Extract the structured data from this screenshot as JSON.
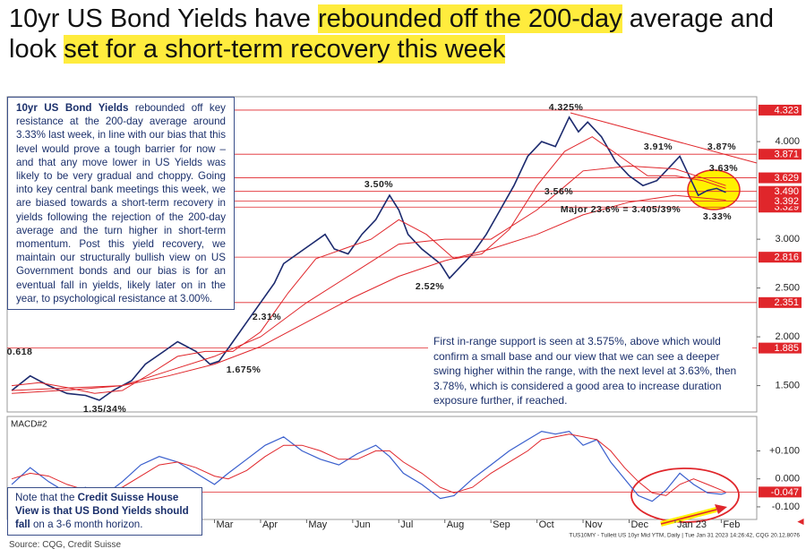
{
  "title": [
    {
      "text": "10yr US Bond Yields have ",
      "highlight": false
    },
    {
      "text": "rebounded off the 200-day",
      "highlight": true
    },
    {
      "text": " average and look ",
      "highlight": false
    },
    {
      "text": "set for a short-term recovery this week",
      "highlight": true
    }
  ],
  "commentary": [
    {
      "text": "10yr US Bond Yields",
      "bold": true
    },
    {
      "text": " rebounded off key resistance at the 200-day average around 3.33% last week, in line with our bias that this level would prove a tough barrier for now – and that any move lower in US Yields was likely to be very gradual and choppy. Going into key central bank meetings this week, we are biased towards a short-term recovery in yields following the rejection of the 200-day average and the turn higher in short-term momentum. Post this yield recovery, we maintain our structurally bullish view on US Government bonds and our bias is for an eventual fall in yields, likely later on in the year, to psychological resistance at 3.00%.",
      "bold": false
    }
  ],
  "outlook": "First in-range support is seen at 3.575%, above which would confirm a small base and our view that we can see a deeper swing higher within the range, with the next level at 3.63%, then 3.78%, which is considered a good area to increase duration exposure further, if reached.",
  "note": [
    {
      "text": "Note that the ",
      "bold": false
    },
    {
      "text": "Credit Suisse House View is that US Bond Yields should fall",
      "bold": true
    },
    {
      "text": " on a 3-6 month horizon.",
      "bold": false
    }
  ],
  "source": "Source: CQG, Credit Suisse",
  "footer": "TUS10MY - Tullett US 10yr Mid YTM, Daily | Tue Jan 31 2023 14:26:42, CQG 20.12.8076",
  "chart_data": [
    {
      "type": "line",
      "xlim": [
        -2.5,
        13.77
      ],
      "ylim": [
        1.23,
        4.46
      ],
      "yticks": [
        {
          "value": 1.5,
          "label": "1.500"
        },
        {
          "value": 2,
          "label": "2.000"
        },
        {
          "value": 2.5,
          "label": "2.500"
        },
        {
          "value": 3,
          "label": "3.000"
        },
        {
          "value": 4,
          "label": "4.000"
        }
      ],
      "levels": [
        {
          "value": 4.323,
          "label": "4.323"
        },
        {
          "value": 3.871,
          "label": "3.871"
        },
        {
          "value": 3.329,
          "label": "3.329"
        },
        {
          "value": 3.392,
          "label": "3.392"
        },
        {
          "value": 3.49,
          "label": "3.490"
        },
        {
          "value": 3.629,
          "label": "3.629"
        },
        {
          "value": 2.816,
          "label": "2.816"
        },
        {
          "value": 2.351,
          "label": "2.351"
        },
        {
          "value": 1.885,
          "label": "1.885"
        }
      ],
      "level_color": "#e0262b",
      "annotations": [
        "4.325%",
        "3.91%",
        "3.87%",
        "3.63%",
        "3.56%",
        "3.50%",
        "2.52%",
        "2.31%",
        "1.675%",
        "1.35/34%",
        "Major 23.6% = 3.405/39%",
        "3.33%",
        "0.618"
      ],
      "series": [
        {
          "color": "#1c2a6e",
          "width": 1.6,
          "x": [
            -2.4,
            -2.0,
            -1.6,
            -1.2,
            -0.8,
            -0.5,
            -0.2,
            0.2,
            0.5,
            0.9,
            1.2,
            1.6,
            1.9,
            2.1,
            2.4,
            2.7,
            3.0,
            3.3,
            3.5,
            3.8,
            4.1,
            4.4,
            4.6,
            4.9,
            5.2,
            5.5,
            5.8,
            6.0,
            6.2,
            6.5,
            6.9,
            7.1,
            7.3,
            7.6,
            7.9,
            8.2,
            8.5,
            8.8,
            9.1,
            9.4,
            9.7,
            9.9,
            10.1,
            10.4,
            10.7,
            11.0,
            11.3,
            11.6,
            11.9,
            12.1,
            12.3,
            12.5,
            12.7,
            12.9,
            13.1
          ],
          "values": [
            1.45,
            1.6,
            1.5,
            1.42,
            1.4,
            1.35,
            1.45,
            1.55,
            1.72,
            1.85,
            1.95,
            1.85,
            1.72,
            1.75,
            1.95,
            2.15,
            2.35,
            2.55,
            2.75,
            2.85,
            2.95,
            3.05,
            2.9,
            2.85,
            3.05,
            3.2,
            3.45,
            3.3,
            3.05,
            2.9,
            2.75,
            2.6,
            2.7,
            2.85,
            3.05,
            3.3,
            3.55,
            3.85,
            4.0,
            3.95,
            4.25,
            4.1,
            4.2,
            4.05,
            3.8,
            3.65,
            3.55,
            3.6,
            3.75,
            3.85,
            3.65,
            3.45,
            3.5,
            3.52,
            3.48
          ]
        },
        {
          "color": "#e0262b",
          "width": 1,
          "x": [
            -2.4,
            -1.8,
            -1.2,
            -0.6,
            0,
            0.6,
            1.2,
            1.8,
            2.4,
            3.0,
            3.6,
            4.2,
            4.8,
            5.4,
            6.0,
            6.6,
            7.2,
            7.8,
            8.4,
            9.0,
            9.6,
            10.2,
            10.8,
            11.4,
            12.0,
            12.6,
            13.1
          ],
          "values": [
            1.5,
            1.53,
            1.48,
            1.42,
            1.45,
            1.62,
            1.8,
            1.85,
            1.85,
            2.05,
            2.45,
            2.8,
            2.9,
            3.0,
            3.2,
            3.05,
            2.8,
            2.85,
            3.1,
            3.55,
            3.9,
            4.05,
            3.85,
            3.65,
            3.65,
            3.6,
            3.52
          ]
        },
        {
          "color": "#e0262b",
          "width": 1,
          "x": [
            -2.4,
            -1,
            0,
            1,
            2,
            3,
            4,
            5,
            6,
            7,
            8,
            9,
            10,
            11,
            12,
            13.1
          ],
          "values": [
            1.45,
            1.48,
            1.5,
            1.65,
            1.8,
            2.0,
            2.35,
            2.65,
            2.95,
            3.0,
            3.0,
            3.3,
            3.7,
            3.75,
            3.72,
            3.55
          ]
        },
        {
          "color": "#e0262b",
          "width": 1,
          "x": [
            -2.4,
            -1,
            0,
            1,
            2,
            3,
            4,
            5,
            6,
            7,
            8,
            9,
            10,
            11,
            12,
            13.1
          ],
          "values": [
            1.42,
            1.46,
            1.5,
            1.6,
            1.72,
            1.9,
            2.15,
            2.4,
            2.62,
            2.78,
            2.9,
            3.05,
            3.25,
            3.38,
            3.45,
            3.4
          ]
        }
      ]
    },
    {
      "type": "line",
      "label": "MACD#2",
      "xlim": [
        -2.5,
        13.77
      ],
      "xticks": [
        {
          "value": 2,
          "label": "Mar"
        },
        {
          "value": 3,
          "label": "Apr"
        },
        {
          "value": 4,
          "label": "May"
        },
        {
          "value": 5,
          "label": "Jun"
        },
        {
          "value": 6,
          "label": "Jul"
        },
        {
          "value": 7,
          "label": "Aug"
        },
        {
          "value": 8,
          "label": "Sep"
        },
        {
          "value": 9,
          "label": "Oct"
        },
        {
          "value": 10,
          "label": "Nov"
        },
        {
          "value": 11,
          "label": "Dec"
        },
        {
          "value": 12,
          "label": "Jan 23"
        },
        {
          "value": 13,
          "label": "Feb"
        }
      ],
      "ylim": [
        -0.145,
        0.223
      ],
      "yticks": [
        {
          "value": 0.1,
          "label": "+0.100"
        },
        {
          "value": 0,
          "label": "0.000"
        },
        {
          "value": -0.1,
          "label": "-0.100"
        }
      ],
      "levels": [
        {
          "value": -0.047,
          "label": "-0.047"
        }
      ],
      "level_color": "#e0262b",
      "series": [
        {
          "color": "#3a5fcd",
          "width": 1.2,
          "x": [
            -2.4,
            -2,
            -1.6,
            -1.2,
            -0.8,
            -0.4,
            0,
            0.4,
            0.8,
            1.2,
            1.6,
            2.0,
            2.3,
            2.7,
            3.1,
            3.5,
            3.9,
            4.3,
            4.7,
            5.1,
            5.5,
            5.8,
            6.1,
            6.5,
            6.9,
            7.2,
            7.6,
            8.0,
            8.4,
            8.8,
            9.1,
            9.4,
            9.7,
            10.0,
            10.3,
            10.6,
            10.9,
            11.2,
            11.5,
            11.8,
            12.1,
            12.4,
            12.7,
            13.0,
            13.1
          ],
          "values": [
            -0.02,
            0.04,
            -0.01,
            -0.05,
            -0.03,
            -0.06,
            -0.01,
            0.05,
            0.08,
            0.06,
            0.02,
            -0.02,
            0.02,
            0.07,
            0.12,
            0.15,
            0.1,
            0.07,
            0.05,
            0.09,
            0.12,
            0.08,
            0.02,
            -0.02,
            -0.07,
            -0.06,
            0.0,
            0.05,
            0.1,
            0.14,
            0.17,
            0.16,
            0.17,
            0.12,
            0.14,
            0.06,
            0.0,
            -0.06,
            -0.08,
            -0.04,
            0.02,
            -0.02,
            -0.05,
            -0.055,
            -0.05
          ]
        },
        {
          "color": "#e0262b",
          "width": 1,
          "x": [
            -2.4,
            -2,
            -1.6,
            -1.2,
            -0.8,
            -0.4,
            0,
            0.4,
            0.8,
            1.2,
            1.6,
            2.0,
            2.3,
            2.7,
            3.1,
            3.5,
            3.9,
            4.3,
            4.7,
            5.1,
            5.5,
            5.8,
            6.1,
            6.5,
            6.9,
            7.2,
            7.6,
            8.0,
            8.4,
            8.8,
            9.1,
            9.4,
            9.7,
            10.0,
            10.3,
            10.6,
            10.9,
            11.2,
            11.5,
            11.8,
            12.1,
            12.4,
            12.7,
            13.0,
            13.1
          ],
          "values": [
            0.0,
            0.02,
            0.01,
            -0.02,
            -0.04,
            -0.04,
            -0.03,
            0.01,
            0.05,
            0.06,
            0.04,
            0.01,
            0.0,
            0.03,
            0.08,
            0.12,
            0.12,
            0.1,
            0.07,
            0.07,
            0.1,
            0.1,
            0.06,
            0.02,
            -0.03,
            -0.05,
            -0.03,
            0.02,
            0.06,
            0.1,
            0.14,
            0.15,
            0.16,
            0.15,
            0.14,
            0.1,
            0.04,
            -0.01,
            -0.05,
            -0.06,
            -0.02,
            0.0,
            -0.02,
            -0.04,
            -0.047
          ]
        }
      ]
    }
  ]
}
